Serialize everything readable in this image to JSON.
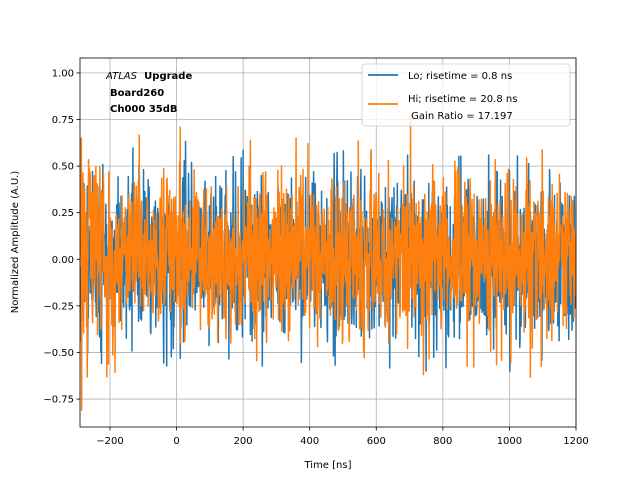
{
  "chart_data": {
    "type": "line",
    "xlabel": "Time [ns]",
    "ylabel": "Normalized Amplitude (A.U.)",
    "xlim": [
      -290,
      1200
    ],
    "ylim": [
      -0.9,
      1.08
    ],
    "xticks": [
      -200,
      0,
      200,
      400,
      600,
      800,
      1000,
      1200
    ],
    "yticks": [
      -0.75,
      -0.5,
      -0.25,
      0.0,
      0.25,
      0.5,
      0.75,
      1.0
    ],
    "grid": true,
    "legend_position": "top-right",
    "annotation": {
      "italic_part": "ATLAS",
      "bold_part": "Upgrade",
      "line2": "Board260",
      "line3": "Ch000 35dB"
    },
    "series": [
      {
        "name": "Lo; risetime = 0.8 ns",
        "color": "#1f77b4",
        "x_start": -290,
        "x_end": 1200,
        "samples": 1500,
        "noise_amplitude": 0.26,
        "mean": 0.0,
        "envelope_peak": [
          -0.76,
          0.77
        ]
      },
      {
        "name": "Hi; risetime = 20.8 ns\n Gain Ratio = 17.197",
        "color": "#ff7f0e",
        "x_start": -290,
        "x_end": 1200,
        "samples": 1500,
        "noise_amplitude": 0.24,
        "mean": 0.03,
        "envelope_peak": [
          -0.81,
          1.0
        ]
      }
    ],
    "legend": [
      {
        "label": "Lo; risetime = 0.8 ns",
        "color": "#1f77b4"
      },
      {
        "label_line1": "Hi; risetime = 20.8 ns",
        "label_line2": " Gain Ratio = 17.197",
        "color": "#ff7f0e"
      }
    ]
  }
}
